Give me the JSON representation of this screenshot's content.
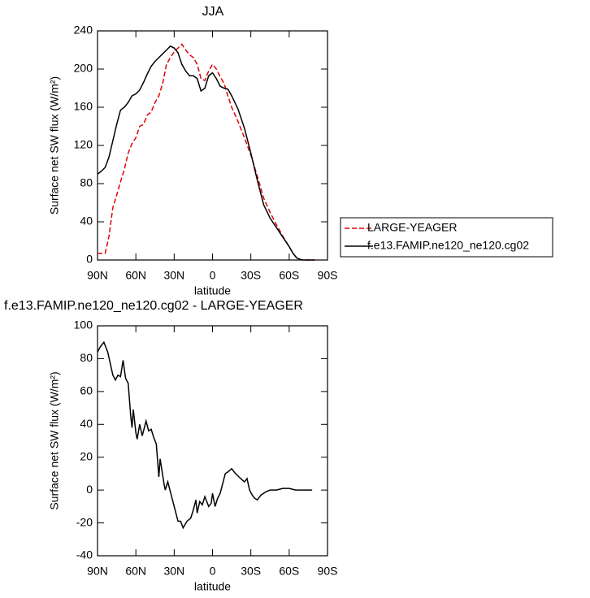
{
  "chart_data": [
    {
      "type": "line",
      "title": "JJA",
      "x_label": "latitude",
      "y_label": "Surface net SW flux (W/m²)",
      "x": [
        90,
        87,
        84,
        81,
        78,
        75,
        72,
        69,
        66,
        63,
        60,
        57,
        54,
        51,
        48,
        45,
        42,
        39,
        36,
        33,
        30,
        27,
        24,
        21,
        18,
        15,
        12,
        9,
        6,
        3,
        0,
        -3,
        -6,
        -9,
        -12,
        -15,
        -20,
        -25,
        -30,
        -35,
        -40,
        -45,
        -50,
        -55,
        -60,
        -63,
        -66,
        -70,
        -75,
        -80
      ],
      "series": [
        {
          "name": "LARGE-YEAGER",
          "color": "#e00000",
          "line_style": "dashed",
          "values": [
            7,
            7,
            7,
            25,
            55,
            68,
            82,
            95,
            112,
            122,
            128,
            140,
            142,
            152,
            155,
            165,
            172,
            185,
            205,
            212,
            218,
            222,
            226,
            220,
            215,
            212,
            205,
            190,
            188,
            198,
            205,
            200,
            192,
            185,
            172,
            160,
            145,
            128,
            110,
            88,
            65,
            50,
            37,
            25,
            14,
            7,
            2,
            0,
            0,
            0
          ]
        },
        {
          "name": "f.e13.FAMIP.ne120_ne120.cg02",
          "color": "#000000",
          "line_style": "solid",
          "values": [
            90,
            93,
            97,
            108,
            125,
            142,
            157,
            160,
            165,
            172,
            174,
            178,
            186,
            195,
            203,
            208,
            212,
            216,
            220,
            224,
            222,
            217,
            205,
            198,
            193,
            193,
            190,
            177,
            180,
            193,
            196,
            190,
            182,
            180,
            179,
            172,
            158,
            138,
            112,
            84,
            58,
            44,
            34,
            24,
            14,
            7,
            2,
            0,
            0,
            0
          ]
        }
      ],
      "xlim": [
        90,
        -90
      ],
      "xticks": [
        {
          "value": 90,
          "label": "90N"
        },
        {
          "value": 60,
          "label": "60N"
        },
        {
          "value": 30,
          "label": "30N"
        },
        0,
        {
          "value": -30,
          "label": "30S"
        },
        {
          "value": -60,
          "label": "60S"
        },
        {
          "value": -90,
          "label": "90S"
        }
      ],
      "ylim": [
        0,
        240
      ],
      "yticks": [
        0,
        40,
        80,
        120,
        160,
        200,
        240
      ],
      "legend": "outside-right"
    },
    {
      "type": "line",
      "title": "f.e13.FAMIP.ne120_ne120.cg02 - LARGE-YEAGER",
      "x_label": "latitude",
      "y_label": "Surface net SW flux (W/m²)",
      "x": [
        90,
        88,
        85,
        82,
        78,
        76,
        74,
        72,
        70,
        68,
        66,
        64,
        63,
        62,
        60,
        59,
        57,
        55,
        52,
        50,
        48,
        46,
        44,
        42,
        41,
        38,
        37,
        35,
        33,
        30,
        27,
        25,
        23,
        20,
        17,
        15,
        13,
        12,
        10,
        8,
        6,
        3,
        1,
        0,
        -2,
        -4,
        -6,
        -8,
        -10,
        -12,
        -15,
        -18,
        -22,
        -25,
        -27,
        -29,
        -31,
        -33,
        -35,
        -38,
        -42,
        -45,
        -50,
        -55,
        -60,
        -65,
        -70,
        -78
      ],
      "values": [
        84,
        87,
        90,
        84,
        70,
        67,
        70,
        69,
        79,
        68,
        65,
        45,
        38,
        49,
        35,
        31,
        40,
        33,
        42,
        36,
        37,
        32,
        28,
        8,
        19,
        4,
        0,
        5,
        -1,
        -10,
        -19,
        -19,
        -23,
        -19,
        -17,
        -12,
        -6,
        -14,
        -7,
        -9,
        -4,
        -10,
        -8,
        -2,
        -10,
        -5,
        -2,
        4,
        10,
        11,
        13,
        10,
        7,
        5,
        7,
        0,
        -3,
        -5,
        -6,
        -3,
        -1,
        0,
        0,
        1,
        1,
        0,
        0,
        0
      ],
      "color": "#000000",
      "xlim": [
        90,
        -90
      ],
      "xticks": [
        {
          "value": 90,
          "label": "90N"
        },
        {
          "value": 60,
          "label": "60N"
        },
        {
          "value": 30,
          "label": "30N"
        },
        0,
        {
          "value": -30,
          "label": "30S"
        },
        {
          "value": -60,
          "label": "60S"
        },
        {
          "value": -90,
          "label": "90S"
        }
      ],
      "ylim": [
        -40,
        100
      ],
      "yticks": [
        -40,
        -20,
        0,
        20,
        40,
        60,
        80,
        100
      ]
    }
  ]
}
